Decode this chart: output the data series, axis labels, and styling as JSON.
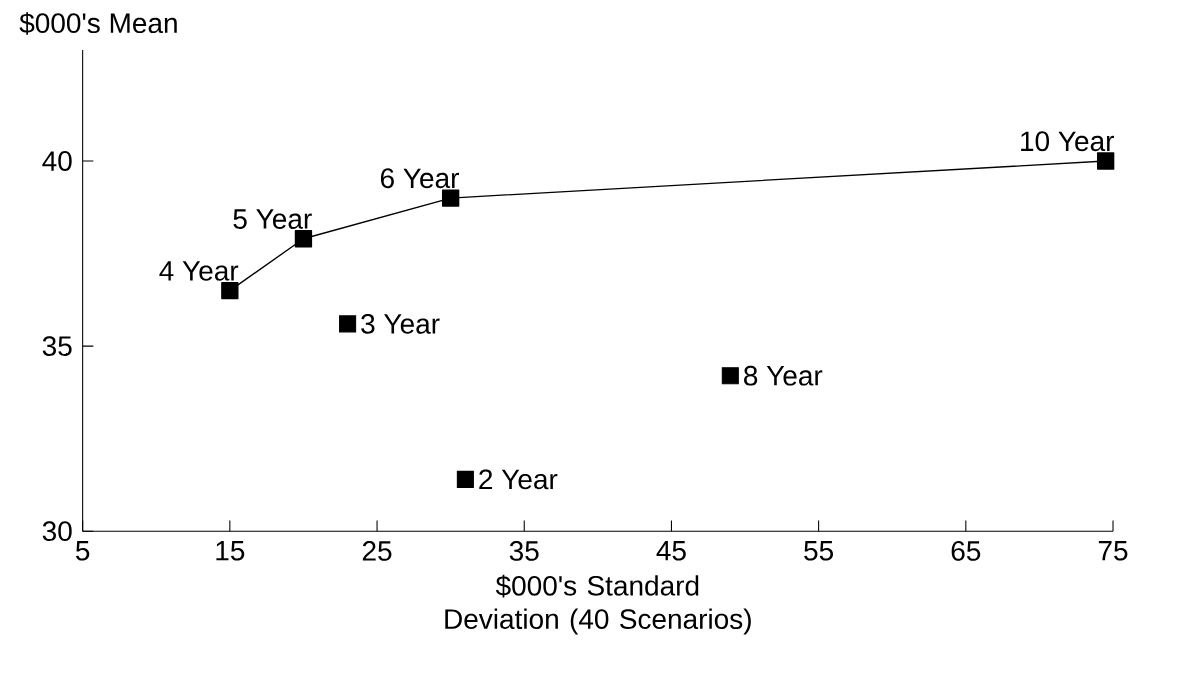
{
  "chart_data": {
    "type": "line",
    "xlabel": "$000's Standard Deviation (40 Scenarios)",
    "ylabel": "$000's Mean",
    "xlim": [
      5,
      75
    ],
    "ylim": [
      30,
      43
    ],
    "xticks": [
      5,
      15,
      25,
      35,
      45,
      55,
      65,
      75
    ],
    "yticks": [
      30,
      35,
      40
    ],
    "marker": "square",
    "line_style": "solid",
    "series": [
      {
        "color": "#000000",
        "x": [
          15,
          20,
          30,
          74.5
        ],
        "values": [
          36.5,
          37.9,
          39,
          40
        ]
      },
      {
        "type": "scatter",
        "color": "#000000",
        "x": [
          23,
          49,
          31
        ],
        "values": [
          35.6,
          34.2,
          31.4
        ]
      }
    ],
    "annotations": [
      {
        "text": "4 Year",
        "x": 15,
        "y": 36.5
      },
      {
        "text": "5 Year",
        "x": 20,
        "y": 37.9
      },
      {
        "text": "6 Year",
        "x": 30,
        "y": 39
      },
      {
        "text": "10 Year",
        "x": 74.5,
        "y": 40
      },
      {
        "text": "3 Year",
        "x": 23,
        "y": 35.6
      },
      {
        "text": "8 Year",
        "x": 49,
        "y": 34.2
      },
      {
        "text": "2 Year",
        "x": 31,
        "y": 31.4
      }
    ]
  }
}
